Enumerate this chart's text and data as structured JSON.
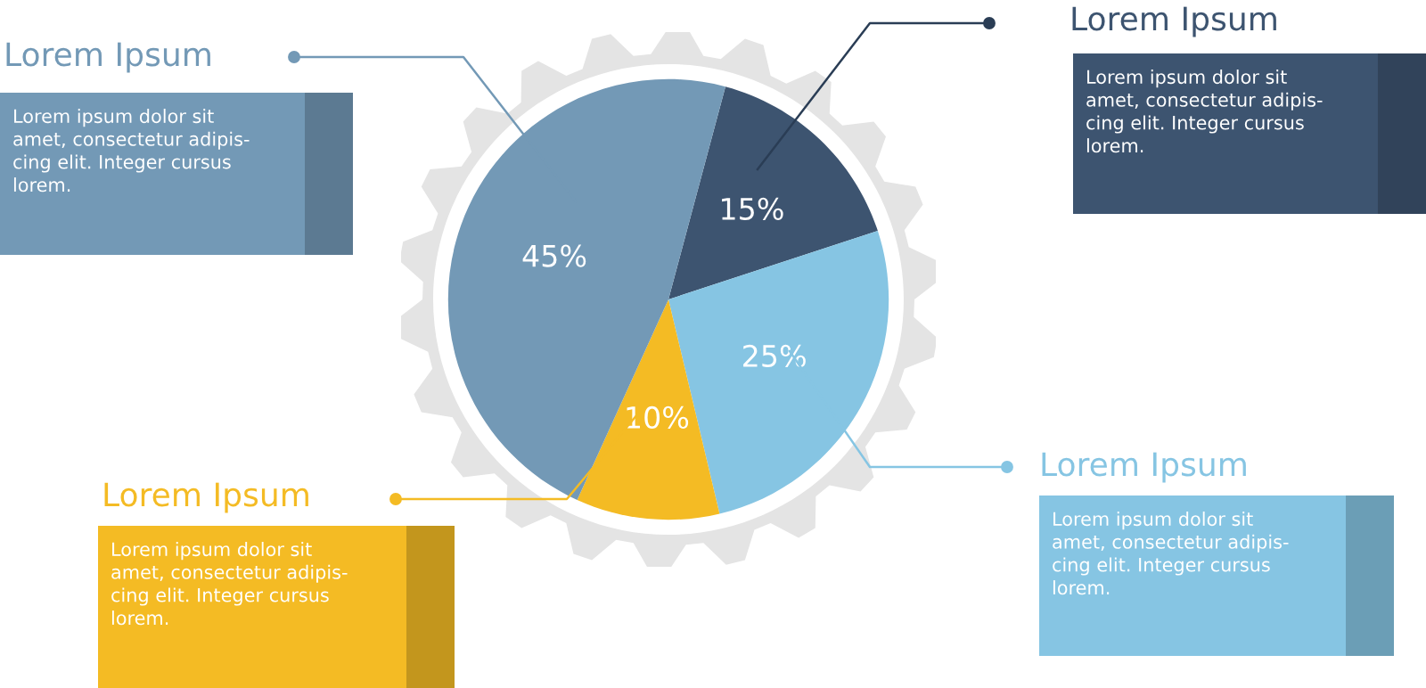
{
  "chart_data": {
    "type": "pie",
    "categories": [
      null,
      null,
      null,
      null
    ],
    "values": [
      15,
      25,
      10,
      45
    ],
    "value_labels": [
      "15%",
      "25%",
      "10%",
      "45%"
    ],
    "colors": [
      "#3d5470",
      "#86c5e3",
      "#f4bb24",
      "#7399b6"
    ],
    "annotations": [
      "Lorem Ipsum",
      "Lorem ipsum dolor sit\namet, consectetur adipis-\ncing elit. Integer cursus\nlorem.",
      "Lorem Ipsum",
      "Lorem ipsum dolor sit\namet, consectetur adipis-\ncing elit. Integer cursus\nlorem.",
      "Lorem Ipsum",
      "Lorem ipsum dolor sit\namet, consectetur adipis-\ncing elit. Integer cursus\nlorem.",
      "Lorem Ipsum",
      "Lorem ipsum dolor sit\namet, consectetur adipis-\ncing elit. Integer cursus\nlorem."
    ]
  }
}
